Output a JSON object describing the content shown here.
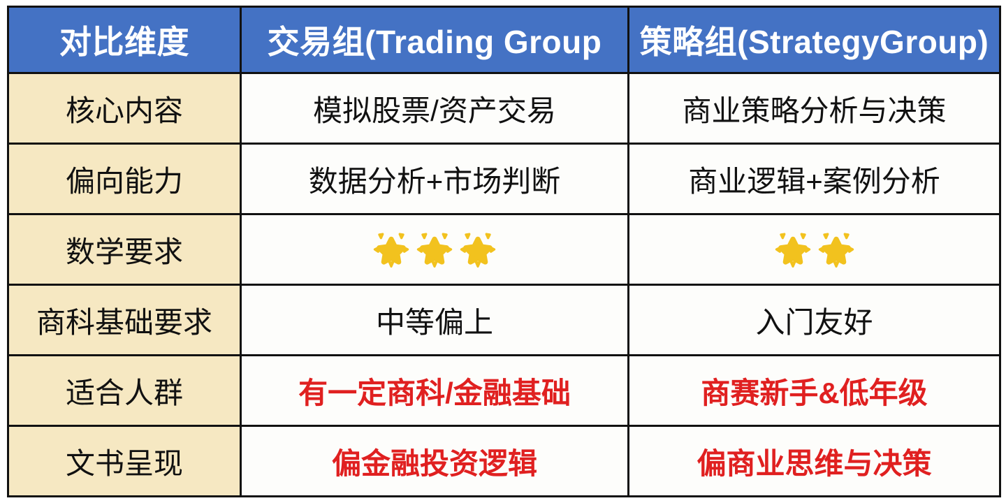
{
  "colors": {
    "header_bg": "#4472C4",
    "header_text": "#FFFFFF",
    "label_column_bg": "#F6E8C2",
    "cell_bg": "#FDFDFB",
    "grid_border": "#111111",
    "body_text": "#111111",
    "accent_red_text": "#E02020",
    "star_gold": "#F2C21E"
  },
  "icons": {
    "star": "glowing-star-icon"
  },
  "table": {
    "header": {
      "dimension": "对比维度",
      "trading": "交易组(Trading Group",
      "strategy": "策略组(StrategyGroup)"
    },
    "rows": [
      {
        "label": "核心内容",
        "trading": "模拟股票/资产交易",
        "strategy": "商业策略分析与决策",
        "style": "normal"
      },
      {
        "label": "偏向能力",
        "trading": "数据分析+市场判断",
        "strategy": "商业逻辑+案例分析",
        "style": "normal"
      },
      {
        "label": "数学要求",
        "trading_stars": 3,
        "strategy_stars": 2,
        "style": "stars"
      },
      {
        "label": "商科基础要求",
        "trading": "中等偏上",
        "strategy": "入门友好",
        "style": "normal"
      },
      {
        "label": "适合人群",
        "trading": "有一定商科/金融基础",
        "strategy": "商赛新手&低年级",
        "style": "red"
      },
      {
        "label": "文书呈现",
        "trading": "偏金融投资逻辑",
        "strategy": "偏商业思维与决策",
        "style": "red"
      }
    ]
  }
}
